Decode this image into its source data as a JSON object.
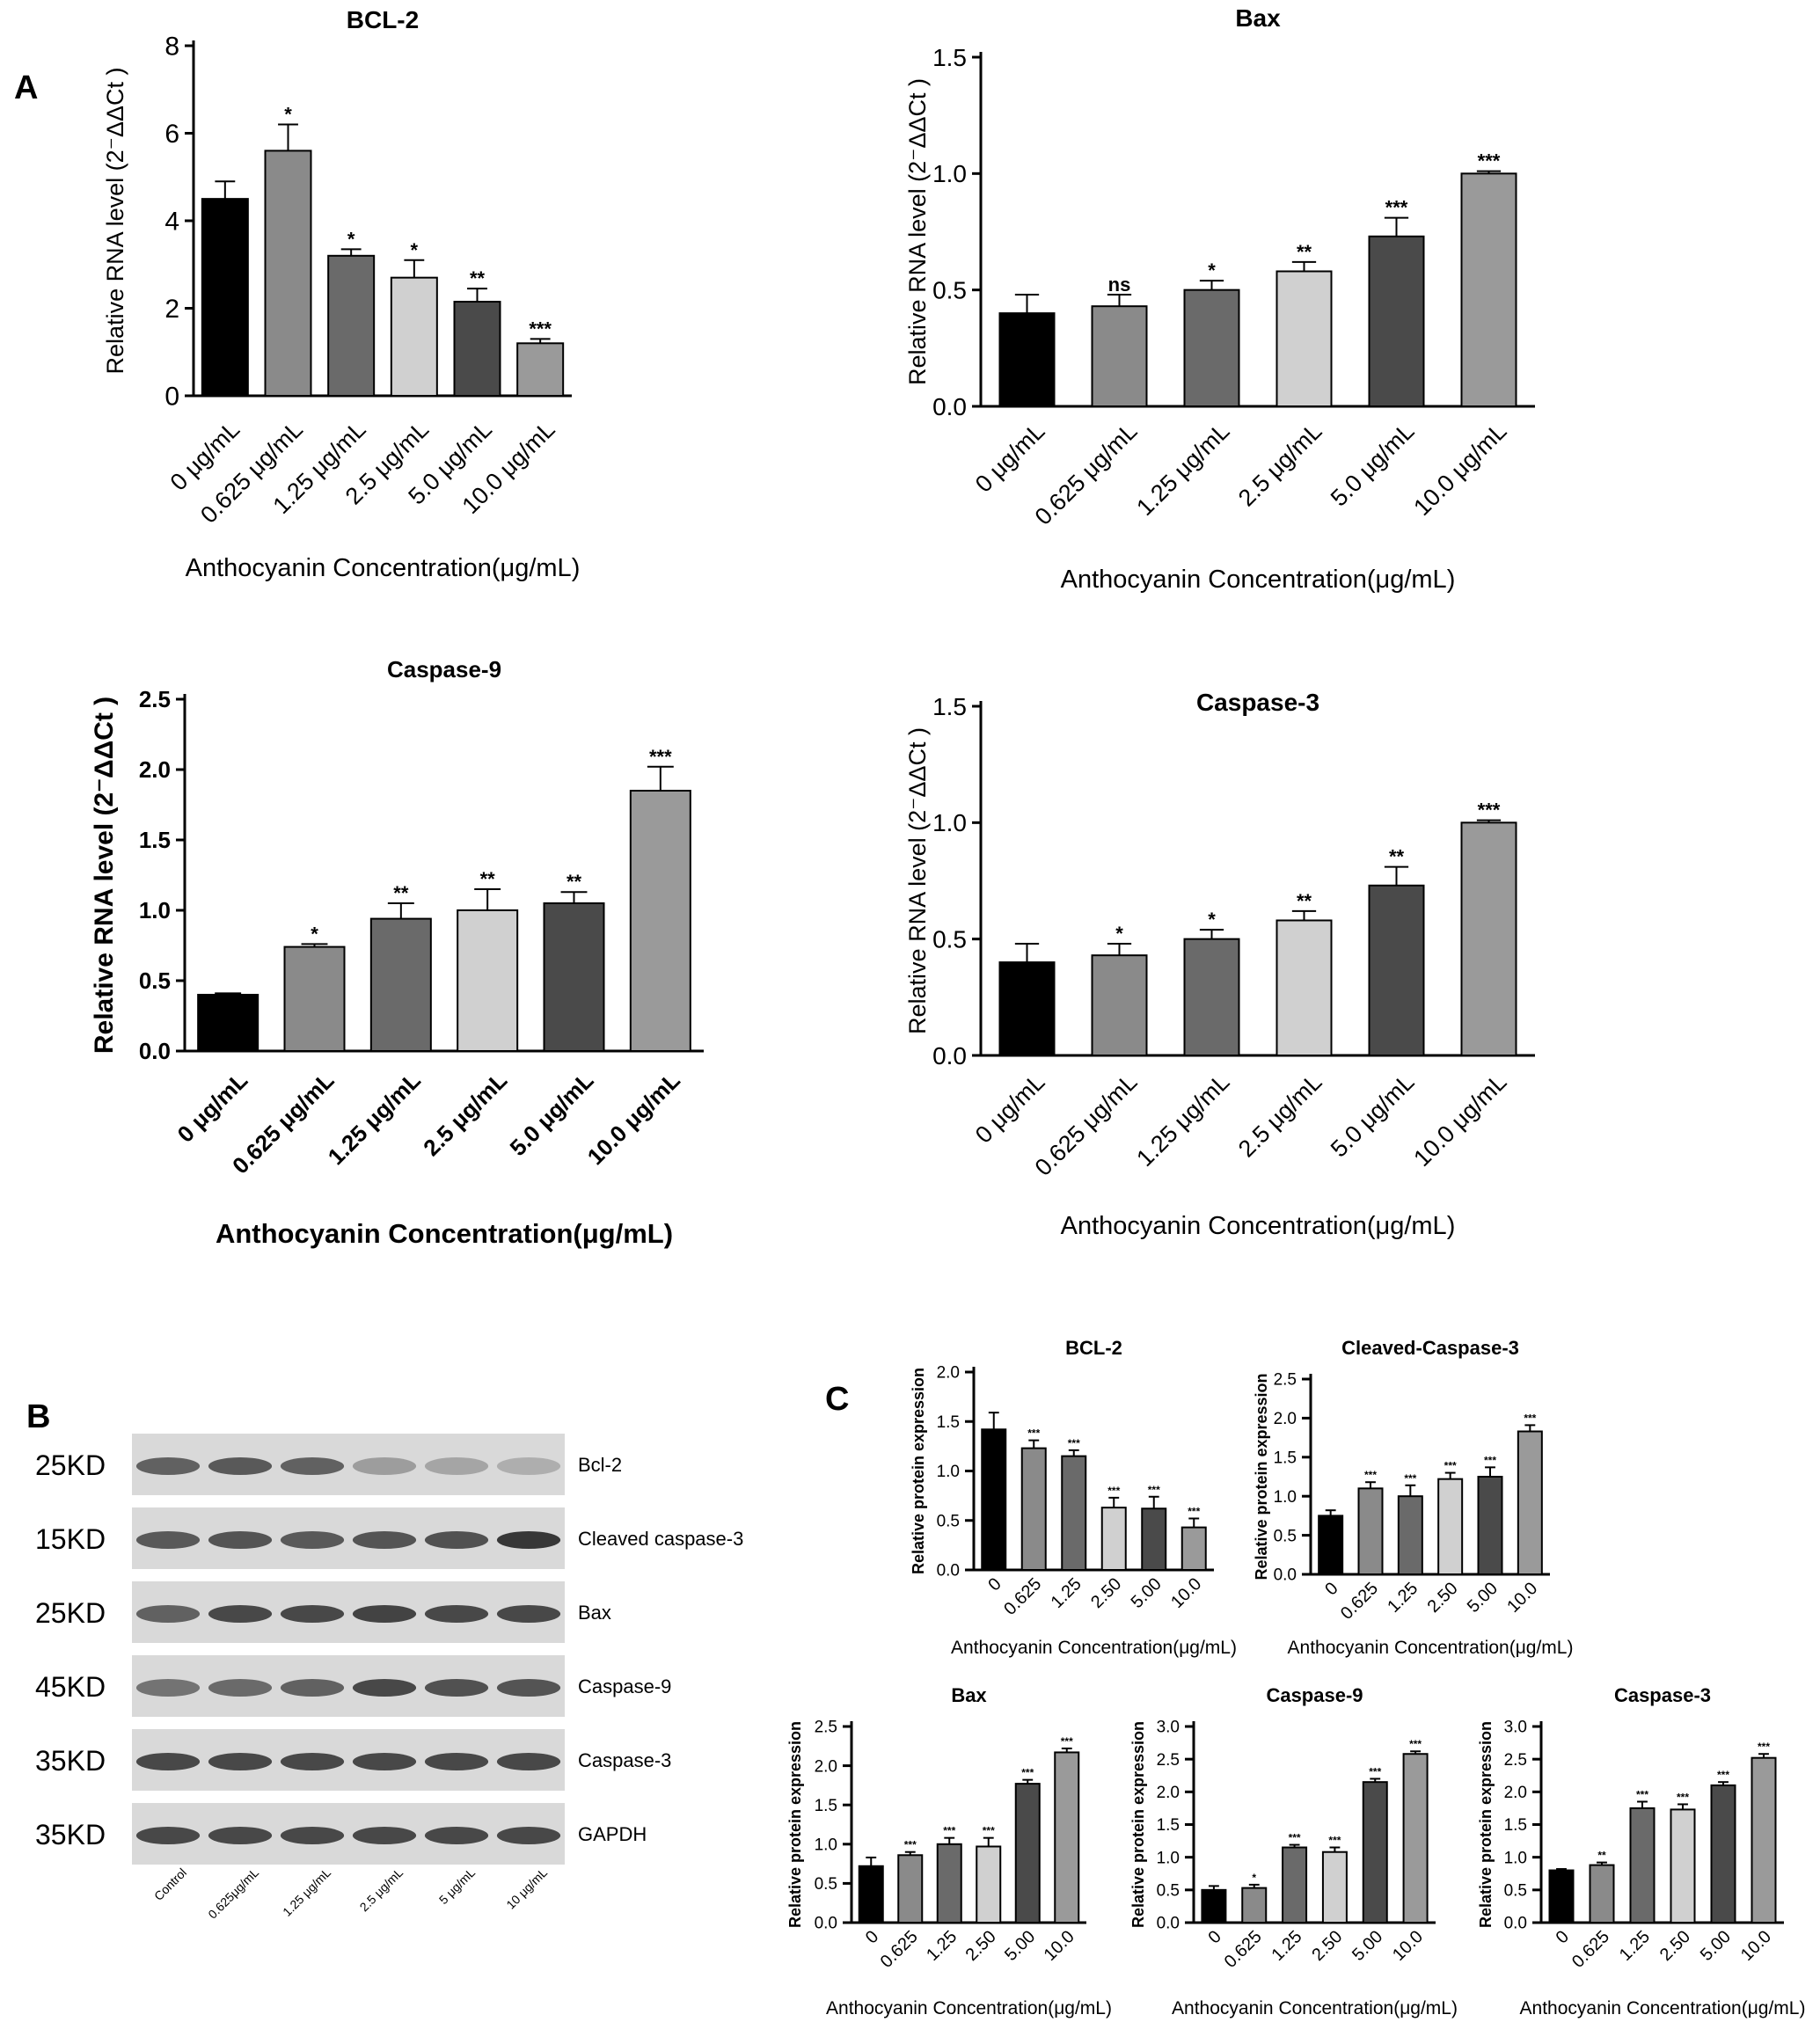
{
  "panel_labels": {
    "a": "A",
    "b": "B",
    "c": "C"
  },
  "colors": {
    "bars": [
      "#000000",
      "#8a8a8a",
      "#6a6a6a",
      "#d0d0d0",
      "#4a4a4a",
      "#9a9a9a"
    ],
    "axis": "#000000",
    "blot_bg": "#d9d9d9",
    "band": "#2e2e2e"
  },
  "blot": {
    "rows": [
      {
        "kd": "25KD",
        "protein": "Bcl-2",
        "bands": [
          0.7,
          0.75,
          0.7,
          0.35,
          0.3,
          0.25
        ]
      },
      {
        "kd": "15KD",
        "protein": "Cleaved caspase-3",
        "bands": [
          0.75,
          0.78,
          0.75,
          0.78,
          0.8,
          0.95
        ]
      },
      {
        "kd": "25KD",
        "protein": "Bax",
        "bands": [
          0.7,
          0.85,
          0.85,
          0.88,
          0.85,
          0.85
        ]
      },
      {
        "kd": "45KD",
        "protein": "Caspase-9",
        "bands": [
          0.6,
          0.65,
          0.7,
          0.85,
          0.8,
          0.78
        ]
      },
      {
        "kd": "35KD",
        "protein": "Caspase-3",
        "bands": [
          0.85,
          0.85,
          0.85,
          0.85,
          0.85,
          0.85
        ]
      },
      {
        "kd": "35KD",
        "protein": "GAPDH",
        "bands": [
          0.85,
          0.85,
          0.85,
          0.85,
          0.85,
          0.85
        ]
      }
    ],
    "lanes": [
      "Control",
      "0.625μg/mL",
      "1.25 μg/mL",
      "2.5 μg/mL",
      "5 μg/mL",
      "10 μg/mL"
    ]
  },
  "chart_data": [
    {
      "id": "a1",
      "type": "bar",
      "title": "BCL-2",
      "ylabel": "Relative RNA level (2⁻ΔΔCt )",
      "xlabel": "Anthocyanin Concentration(μg/mL)",
      "categories": [
        "0 μg/mL",
        "0.625 μg/mL",
        "1.25 μg/mL",
        "2.5 μg/mL",
        "5.0 μg/mL",
        "10.0 μg/mL"
      ],
      "values": [
        4.5,
        5.6,
        3.2,
        2.7,
        2.15,
        1.2
      ],
      "errors": [
        0.4,
        0.6,
        0.15,
        0.4,
        0.3,
        0.1
      ],
      "sig": [
        "",
        "*",
        "*",
        "*",
        "**",
        "***"
      ],
      "ylim": [
        0,
        8
      ],
      "yticks": [
        "0",
        "2",
        "4",
        "6",
        "8"
      ]
    },
    {
      "id": "a2",
      "type": "bar",
      "title": "Bax",
      "ylabel": "Relative RNA level (2⁻ΔΔCt )",
      "xlabel": "Anthocyanin Concentration(μg/mL)",
      "categories": [
        "0 μg/mL",
        "0.625 μg/mL",
        "1.25 μg/mL",
        "2.5 μg/mL",
        "5.0 μg/mL",
        "10.0 μg/mL"
      ],
      "values": [
        0.4,
        0.43,
        0.5,
        0.58,
        0.73,
        1.0
      ],
      "errors": [
        0.08,
        0.05,
        0.04,
        0.04,
        0.08,
        0.01
      ],
      "sig": [
        "",
        "ns",
        "*",
        "**",
        "***",
        "***"
      ],
      "ylim": [
        0,
        1.5
      ],
      "yticks": [
        "0.0",
        "0.5",
        "1.0",
        "1.5"
      ]
    },
    {
      "id": "a3",
      "type": "bar",
      "title": "Caspase-9",
      "ylabel": "Relative RNA level (2⁻ΔΔCt )",
      "xlabel": "Anthocyanin Concentration(μg/mL)",
      "categories": [
        "0 μg/mL",
        "0.625 μg/mL",
        "1.25 μg/mL",
        "2.5 μg/mL",
        "5.0 μg/mL",
        "10.0 μg/mL"
      ],
      "values": [
        0.4,
        0.74,
        0.94,
        1.0,
        1.05,
        1.85
      ],
      "errors": [
        0.01,
        0.02,
        0.11,
        0.15,
        0.08,
        0.17
      ],
      "sig": [
        "",
        "*",
        "**",
        "**",
        "**",
        "***"
      ],
      "ylim": [
        0,
        2.5
      ],
      "yticks": [
        "0.0",
        "0.5",
        "1.0",
        "1.5",
        "2.0",
        "2.5"
      ]
    },
    {
      "id": "a4",
      "type": "bar",
      "title": "Caspase-3",
      "ylabel": "Relative RNA level (2⁻ΔΔCt )",
      "xlabel": "Anthocyanin Concentration(μg/mL)",
      "categories": [
        "0 μg/mL",
        "0.625 μg/mL",
        "1.25 μg/mL",
        "2.5 μg/mL",
        "5.0 μg/mL",
        "10.0 μg/mL"
      ],
      "values": [
        0.4,
        0.43,
        0.5,
        0.58,
        0.73,
        1.0
      ],
      "errors": [
        0.08,
        0.05,
        0.04,
        0.04,
        0.08,
        0.01
      ],
      "sig": [
        "",
        "*",
        "*",
        "**",
        "**",
        "***"
      ],
      "ylim": [
        0,
        1.5
      ],
      "yticks": [
        "0.0",
        "0.5",
        "1.0",
        "1.5"
      ]
    },
    {
      "id": "c1",
      "type": "bar",
      "title": "BCL-2",
      "ylabel": "Relative protein expression",
      "xlabel": "Anthocyanin Concentration(μg/mL)",
      "categories": [
        "0",
        "0.625",
        "1.25",
        "2.50",
        "5.00",
        "10.0"
      ],
      "values": [
        1.42,
        1.23,
        1.15,
        0.63,
        0.62,
        0.43
      ],
      "errors": [
        0.17,
        0.08,
        0.06,
        0.1,
        0.12,
        0.09
      ],
      "sig": [
        "",
        "***",
        "***",
        "***",
        "***",
        "***"
      ],
      "ylim": [
        0,
        2.0
      ],
      "yticks": [
        "0.0",
        "0.5",
        "1.0",
        "1.5",
        "2.0"
      ]
    },
    {
      "id": "c2",
      "type": "bar",
      "title": "Cleaved-Caspase-3",
      "ylabel": "Relative protein expression",
      "xlabel": "Anthocyanin Concentration(μg/mL)",
      "categories": [
        "0",
        "0.625",
        "1.25",
        "2.50",
        "5.00",
        "10.0"
      ],
      "values": [
        0.75,
        1.1,
        1.0,
        1.22,
        1.25,
        1.83
      ],
      "errors": [
        0.07,
        0.08,
        0.14,
        0.08,
        0.12,
        0.08
      ],
      "sig": [
        "",
        "***",
        "***",
        "***",
        "***",
        "***"
      ],
      "ylim": [
        0,
        2.5
      ],
      "yticks": [
        "0.0",
        "0.5",
        "1.0",
        "1.5",
        "2.0",
        "2.5"
      ]
    },
    {
      "id": "c3",
      "type": "bar",
      "title": "Bax",
      "ylabel": "Relative protein expression",
      "xlabel": "Anthocyanin Concentration(μg/mL)",
      "categories": [
        "0",
        "0.625",
        "1.25",
        "2.50",
        "5.00",
        "10.0"
      ],
      "values": [
        0.72,
        0.86,
        1.0,
        0.97,
        1.77,
        2.17
      ],
      "errors": [
        0.11,
        0.04,
        0.08,
        0.11,
        0.05,
        0.05
      ],
      "sig": [
        "",
        "***",
        "***",
        "***",
        "***",
        "***"
      ],
      "ylim": [
        0,
        2.5
      ],
      "yticks": [
        "0.0",
        "0.5",
        "1.0",
        "1.5",
        "2.0",
        "2.5"
      ]
    },
    {
      "id": "c4",
      "type": "bar",
      "title": "Caspase-9",
      "ylabel": "Relative protein expression",
      "xlabel": "Anthocyanin Concentration(μg/mL)",
      "categories": [
        "0",
        "0.625",
        "1.25",
        "2.50",
        "5.00",
        "10.0"
      ],
      "values": [
        0.5,
        0.53,
        1.15,
        1.08,
        2.15,
        2.58
      ],
      "errors": [
        0.06,
        0.05,
        0.04,
        0.07,
        0.05,
        0.04
      ],
      "sig": [
        "",
        "*",
        "***",
        "***",
        "***",
        "***"
      ],
      "ylim": [
        0,
        3.0
      ],
      "yticks": [
        "0.0",
        "0.5",
        "1.0",
        "1.5",
        "2.0",
        "2.5",
        "3.0"
      ]
    },
    {
      "id": "c5",
      "type": "bar",
      "title": "Caspase-3",
      "ylabel": "Relative protein expression",
      "xlabel": "Anthocyanin Concentration(μg/mL)",
      "categories": [
        "0",
        "0.625",
        "1.25",
        "2.50",
        "5.00",
        "10.0"
      ],
      "values": [
        0.8,
        0.88,
        1.75,
        1.73,
        2.1,
        2.52
      ],
      "errors": [
        0.02,
        0.04,
        0.1,
        0.08,
        0.05,
        0.06
      ],
      "sig": [
        "",
        "**",
        "***",
        "***",
        "***",
        "***"
      ],
      "ylim": [
        0,
        3.0
      ],
      "yticks": [
        "0.0",
        "0.5",
        "1.0",
        "1.5",
        "2.0",
        "2.5",
        "3.0"
      ]
    }
  ]
}
